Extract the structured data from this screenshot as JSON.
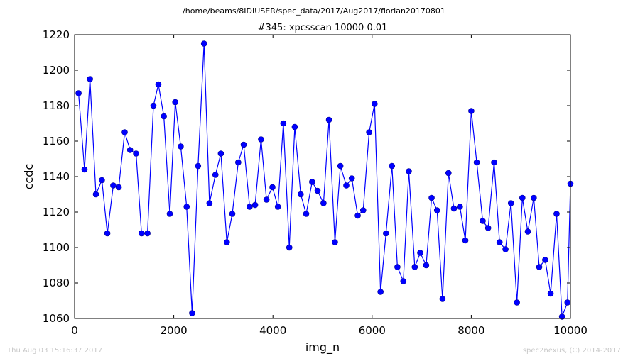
{
  "suptitle": "/home/beams/8IDIUSER/spec_data/2017/Aug2017/florian20170801",
  "footer": {
    "timestamp": "Thu Aug 03 15:16:37 2017",
    "credit": "spec2nexus, (C) 2014-2017"
  },
  "colors": {
    "series": "#0000ff",
    "axes": "#000000",
    "background": "#ffffff"
  },
  "chart_data": {
    "type": "line",
    "title": "#345: xpcsscan 10000 0.01",
    "xlabel": "img_n",
    "ylabel": "ccdc",
    "xlim": [
      0,
      10000
    ],
    "ylim": [
      1060,
      1220
    ],
    "xticks": [
      0,
      2000,
      4000,
      6000,
      8000,
      10000
    ],
    "yticks": [
      1060,
      1080,
      1100,
      1120,
      1140,
      1160,
      1180,
      1200,
      1220
    ],
    "grid": false,
    "markers": "circle",
    "series": [
      {
        "x": [
          80,
          200,
          310,
          430,
          550,
          660,
          780,
          890,
          1010,
          1120,
          1240,
          1350,
          1470,
          1590,
          1690,
          1800,
          1920,
          2030,
          2140,
          2260,
          2370,
          2490,
          2610,
          2720,
          2840,
          2950,
          3070,
          3180,
          3300,
          3410,
          3530,
          3640,
          3760,
          3870,
          3990,
          4100,
          4210,
          4330,
          4440,
          4560,
          4670,
          4790,
          4900,
          5020,
          5130,
          5250,
          5360,
          5480,
          5590,
          5710,
          5820,
          5940,
          6050,
          6170,
          6280,
          6400,
          6510,
          6630,
          6740,
          6860,
          6970,
          7090,
          7200,
          7310,
          7420,
          7540,
          7650,
          7770,
          7880,
          8000,
          8110,
          8230,
          8340,
          8460,
          8570,
          8690,
          8800,
          8920,
          9030,
          9140,
          9260,
          9370,
          9490,
          9600,
          9720,
          9830,
          9940,
          10000
        ],
        "y": [
          1187,
          1144,
          1195,
          1130,
          1138,
          1108,
          1135,
          1134,
          1165,
          1155,
          1153,
          1108,
          1108,
          1180,
          1192,
          1174,
          1119,
          1182,
          1157,
          1123,
          1063,
          1146,
          1215,
          1125,
          1141,
          1153,
          1103,
          1119,
          1148,
          1158,
          1123,
          1124,
          1161,
          1127,
          1134,
          1123,
          1170,
          1100,
          1168,
          1130,
          1119,
          1137,
          1132,
          1125,
          1172,
          1103,
          1146,
          1135,
          1139,
          1118,
          1121,
          1165,
          1181,
          1075,
          1108,
          1146,
          1089,
          1081,
          1143,
          1089,
          1097,
          1090,
          1128,
          1121,
          1071,
          1142,
          1122,
          1123,
          1104,
          1177,
          1148,
          1115,
          1111,
          1148,
          1103,
          1099,
          1125,
          1069,
          1128,
          1109,
          1128,
          1089,
          1093,
          1074,
          1119,
          1061,
          1069,
          1136
        ]
      }
    ]
  }
}
